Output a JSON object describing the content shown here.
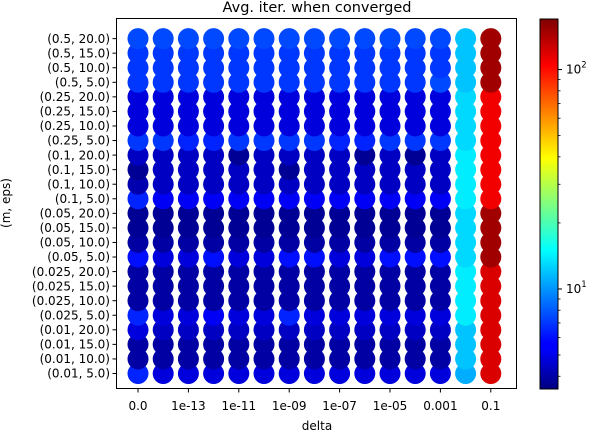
{
  "chart_data": {
    "type": "scatter",
    "title": "Avg. iter. when converged",
    "xlabel": "delta",
    "ylabel": "(m, eps)",
    "x_ticks": [
      "0.0",
      "1e-13",
      "1e-11",
      "1e-09",
      "1e-07",
      "1e-05",
      "0.001",
      "0.1"
    ],
    "y_categories": [
      "(0.01, 5.0)",
      "(0.01, 10.0)",
      "(0.01, 15.0)",
      "(0.01, 20.0)",
      "(0.025, 5.0)",
      "(0.025, 10.0)",
      "(0.025, 15.0)",
      "(0.025, 20.0)",
      "(0.05, 5.0)",
      "(0.05, 10.0)",
      "(0.05, 15.0)",
      "(0.05, 20.0)",
      "(0.1, 5.0)",
      "(0.1, 10.0)",
      "(0.1, 15.0)",
      "(0.1, 20.0)",
      "(0.25, 5.0)",
      "(0.25, 10.0)",
      "(0.25, 15.0)",
      "(0.25, 20.0)",
      "(0.5, 5.0)",
      "(0.5, 10.0)",
      "(0.5, 15.0)",
      "(0.5, 20.0)"
    ],
    "x_columns": [
      "0.0",
      "1e-14",
      "1e-13",
      "1e-12",
      "1e-11",
      "1e-10",
      "1e-09",
      "1e-08",
      "1e-07",
      "1e-06",
      "1e-05",
      "0.0001",
      "0.001",
      "0.01",
      "0.1"
    ],
    "values": [
      [
        6.5,
        5.0,
        5.0,
        5.0,
        5.0,
        5.0,
        5.0,
        5.0,
        5.0,
        5.0,
        5.0,
        5.0,
        5.0,
        11.0,
        120
      ],
      [
        4.0,
        4.0,
        4.0,
        4.0,
        4.0,
        4.0,
        4.0,
        4.0,
        4.0,
        4.0,
        4.0,
        4.0,
        4.0,
        12.0,
        120
      ],
      [
        4.0,
        4.0,
        4.0,
        4.0,
        4.0,
        4.0,
        4.0,
        4.0,
        4.0,
        4.0,
        4.0,
        4.0,
        4.0,
        12.0,
        120
      ],
      [
        5.0,
        4.5,
        4.5,
        4.5,
        4.5,
        4.5,
        4.5,
        4.5,
        4.5,
        4.5,
        4.5,
        4.5,
        4.5,
        12.0,
        120
      ],
      [
        6.5,
        5.0,
        5.0,
        5.5,
        5.0,
        5.0,
        6.5,
        5.0,
        5.0,
        5.0,
        5.0,
        5.0,
        5.0,
        14.0,
        120
      ],
      [
        4.0,
        4.0,
        4.0,
        4.0,
        4.0,
        4.0,
        4.0,
        4.0,
        4.0,
        4.0,
        4.0,
        4.0,
        4.0,
        14.0,
        120
      ],
      [
        4.0,
        4.0,
        4.0,
        4.0,
        4.0,
        4.0,
        4.0,
        4.0,
        4.0,
        4.0,
        4.0,
        4.0,
        4.0,
        14.0,
        120
      ],
      [
        4.0,
        4.0,
        4.0,
        4.0,
        4.0,
        4.0,
        4.0,
        4.0,
        4.0,
        4.0,
        4.0,
        4.0,
        4.0,
        14.0,
        120
      ],
      [
        6.0,
        5.0,
        5.0,
        6.0,
        5.0,
        5.0,
        6.0,
        6.0,
        5.0,
        5.0,
        6.0,
        6.0,
        6.0,
        13.0,
        150
      ],
      [
        4.0,
        4.0,
        4.0,
        4.0,
        4.0,
        4.0,
        4.0,
        4.0,
        4.0,
        4.0,
        4.0,
        4.0,
        4.0,
        13.0,
        150
      ],
      [
        3.8,
        3.8,
        3.8,
        3.8,
        3.8,
        3.8,
        3.8,
        3.8,
        3.8,
        3.8,
        3.8,
        3.8,
        3.8,
        13.0,
        150
      ],
      [
        3.8,
        3.8,
        3.8,
        3.8,
        3.8,
        3.8,
        3.8,
        3.8,
        3.8,
        3.8,
        3.8,
        3.8,
        3.8,
        13.0,
        150
      ],
      [
        6.5,
        5.5,
        5.5,
        5.5,
        5.5,
        5.5,
        5.5,
        5.5,
        5.5,
        5.5,
        5.5,
        5.5,
        5.5,
        14.0,
        110
      ],
      [
        4.2,
        4.5,
        4.5,
        4.5,
        4.5,
        4.5,
        4.5,
        4.5,
        4.5,
        4.5,
        4.5,
        4.5,
        4.5,
        14.0,
        110
      ],
      [
        3.8,
        4.5,
        4.5,
        4.5,
        4.5,
        4.5,
        3.8,
        4.5,
        4.5,
        4.5,
        4.5,
        4.5,
        4.5,
        14.0,
        110
      ],
      [
        4.5,
        4.5,
        4.5,
        4.5,
        3.8,
        4.5,
        4.5,
        4.5,
        4.5,
        3.8,
        4.5,
        3.8,
        4.5,
        14.0,
        110
      ],
      [
        7.0,
        7.0,
        6.5,
        6.5,
        7.0,
        7.0,
        7.0,
        7.0,
        6.5,
        6.5,
        7.0,
        7.0,
        7.0,
        13.0,
        110
      ],
      [
        5.0,
        5.0,
        5.0,
        5.0,
        5.0,
        5.0,
        5.0,
        5.0,
        5.0,
        5.0,
        5.0,
        5.0,
        5.0,
        13.0,
        110
      ],
      [
        5.0,
        5.0,
        5.0,
        5.0,
        5.0,
        5.0,
        5.0,
        5.0,
        5.0,
        5.0,
        5.0,
        5.0,
        5.0,
        13.0,
        110
      ],
      [
        5.0,
        5.0,
        5.0,
        5.0,
        5.0,
        5.0,
        5.0,
        5.0,
        5.0,
        5.0,
        5.0,
        5.0,
        5.0,
        13.0,
        110
      ],
      [
        7.0,
        7.0,
        7.0,
        7.0,
        7.0,
        7.0,
        7.0,
        7.0,
        7.0,
        7.0,
        7.0,
        7.0,
        7.5,
        12.0,
        150
      ],
      [
        7.0,
        7.0,
        7.0,
        7.0,
        7.0,
        7.0,
        7.0,
        7.0,
        7.0,
        7.0,
        7.0,
        7.0,
        7.0,
        12.0,
        150
      ],
      [
        7.0,
        7.0,
        7.0,
        7.0,
        7.0,
        7.0,
        7.0,
        7.0,
        7.0,
        7.0,
        7.0,
        7.0,
        7.0,
        12.0,
        150
      ],
      [
        7.5,
        7.5,
        7.5,
        7.5,
        7.5,
        7.5,
        7.5,
        7.5,
        7.5,
        7.5,
        7.5,
        7.5,
        7.5,
        12.0,
        150
      ]
    ],
    "colorbar": {
      "colormap": "jet",
      "scale": "log",
      "range": [
        3.5,
        170
      ],
      "tick_labels": [
        {
          "value": 10,
          "mantissa": "10",
          "exponent": "1"
        },
        {
          "value": 100,
          "mantissa": "10",
          "exponent": "2"
        }
      ]
    },
    "grid": false,
    "legend": "none"
  }
}
